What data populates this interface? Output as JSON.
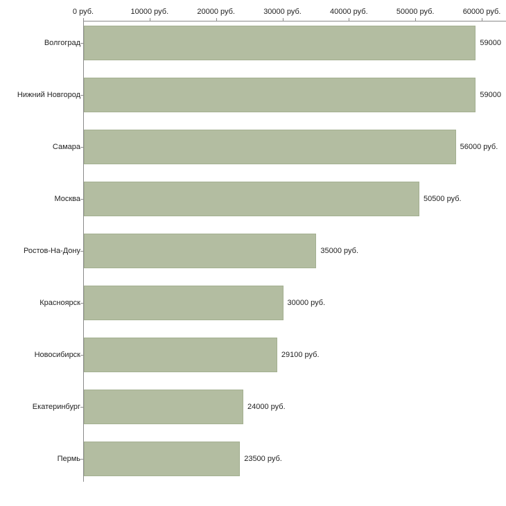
{
  "chart_data": {
    "type": "bar",
    "orientation": "horizontal",
    "categories": [
      "Волгоград",
      "Нижний Новгород",
      "Самара",
      "Москва",
      "Ростов-На-Дону",
      "Красноярск",
      "Новосибирск",
      "Екатеринбург",
      "Пермь"
    ],
    "values": [
      59000,
      59000,
      56000,
      50500,
      35000,
      30000,
      29100,
      24000,
      23500
    ],
    "value_labels": [
      "59000",
      "59000",
      "56000 руб.",
      "50500 руб.",
      "35000 руб.",
      "30000 руб.",
      "29100 руб.",
      "24000 руб.",
      "23500 руб."
    ],
    "x_ticks": [
      0,
      10000,
      20000,
      30000,
      40000,
      50000,
      60000
    ],
    "x_tick_labels": [
      "0 руб.",
      "10000 руб.",
      "20000 руб.",
      "30000 руб.",
      "40000 руб.",
      "50000 руб.",
      "60000 руб."
    ],
    "xlim": [
      0,
      63650
    ],
    "unit": "руб.",
    "grid": false,
    "legend": "none",
    "bar_color": "#b3bda1",
    "bar_border_color": "#a3af90",
    "axis_color": "#8a8a8a",
    "text_color": "#222222",
    "background_color": "#ffffff"
  }
}
